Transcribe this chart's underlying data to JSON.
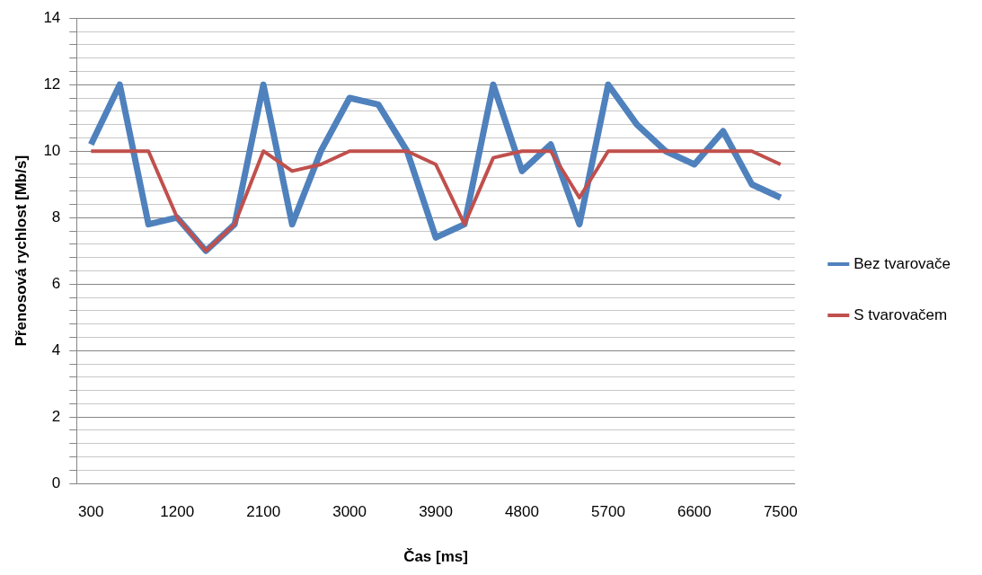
{
  "chart_data": {
    "type": "line",
    "xlabel": "Čas [ms]",
    "ylabel": "Přenosová rychlost [Mb/s]",
    "categories": [
      "300",
      null,
      null,
      "1200",
      null,
      null,
      "2100",
      null,
      null,
      "3000",
      null,
      null,
      "3900",
      null,
      null,
      "4800",
      null,
      null,
      "5700",
      null,
      null,
      "6600",
      null,
      null,
      "7500"
    ],
    "series": [
      {
        "name": "Bez tvarovače",
        "color": "#4f81bd",
        "values": [
          10.2,
          12,
          7.8,
          8,
          7,
          7.8,
          12,
          7.8,
          10,
          11.6,
          11.4,
          10,
          7.4,
          7.8,
          12,
          9.4,
          10.2,
          7.8,
          12,
          10.8,
          10,
          9.6,
          10.6,
          9,
          8.6
        ]
      },
      {
        "name": "S tvarovačem",
        "color": "#c0504d",
        "values": [
          10,
          10,
          10,
          8,
          7,
          7.8,
          10,
          9.4,
          9.6,
          10,
          10,
          10,
          9.6,
          7.8,
          9.8,
          10,
          10,
          8.6,
          10,
          10,
          10,
          10,
          10,
          10,
          9.6
        ]
      }
    ],
    "ylim": [
      0,
      14
    ],
    "yticks": [
      0,
      {
        "value": 0.4,
        "label": null
      },
      {
        "value": 0.8,
        "label": null
      },
      {
        "value": 1.2,
        "label": null
      },
      {
        "value": 1.6,
        "label": null
      },
      2,
      {
        "value": 2.4,
        "label": null
      },
      {
        "value": 2.8,
        "label": null
      },
      {
        "value": 3.2,
        "label": null
      },
      {
        "value": 3.6,
        "label": null
      },
      4,
      {
        "value": 4.4,
        "label": null
      },
      {
        "value": 4.8,
        "label": null
      },
      {
        "value": 5.2,
        "label": null
      },
      {
        "value": 5.6,
        "label": null
      },
      6,
      {
        "value": 6.4,
        "label": null
      },
      {
        "value": 6.8,
        "label": null
      },
      {
        "value": 7.2,
        "label": null
      },
      {
        "value": 7.6,
        "label": null
      },
      8,
      {
        "value": 8.4,
        "label": null
      },
      {
        "value": 8.8,
        "label": null
      },
      {
        "value": 9.2,
        "label": null
      },
      {
        "value": 9.6,
        "label": null
      },
      10,
      {
        "value": 10.4,
        "label": null
      },
      {
        "value": 10.8,
        "label": null
      },
      {
        "value": 11.2,
        "label": null
      },
      {
        "value": 11.6,
        "label": null
      },
      12,
      {
        "value": 12.4,
        "label": null
      },
      {
        "value": 12.8,
        "label": null
      },
      {
        "value": 13.2,
        "label": null
      },
      {
        "value": 13.6,
        "label": null
      },
      14
    ],
    "grid": "y",
    "legend": "right",
    "marker": "none",
    "line_style": "solid"
  }
}
